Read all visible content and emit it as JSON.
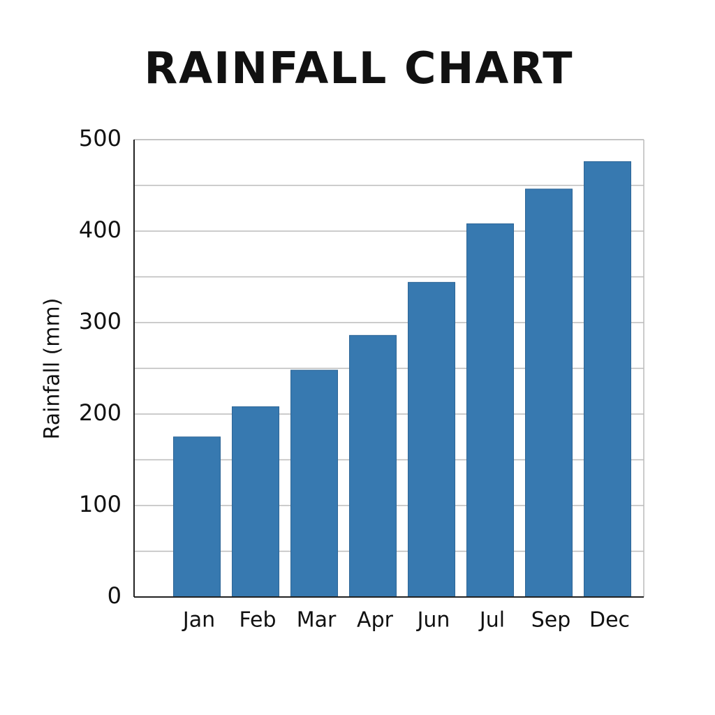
{
  "chart_data": {
    "type": "bar",
    "title": "RAINFALL CHART",
    "y_label": "Rainfall (mm)",
    "categories": [
      "Jan",
      "Feb",
      "Mar",
      "Apr",
      "Jun",
      "Jul",
      "Sep",
      "Dec"
    ],
    "values": [
      175,
      208,
      248,
      286,
      344,
      408,
      446,
      476
    ],
    "color": "#3779b0",
    "ylim": [
      0,
      500
    ],
    "yticks": [
      0,
      100,
      200,
      300,
      400,
      500
    ],
    "grid": true
  }
}
